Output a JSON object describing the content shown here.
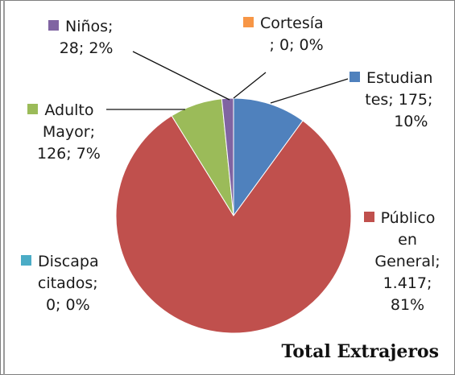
{
  "chart_data": {
    "type": "pie",
    "title": "Total Extrajeros",
    "slices": [
      {
        "name": "Estudiantes",
        "value": 175,
        "percent": "10%",
        "color": "#4f81bd",
        "label_lines": [
          "Estudian",
          "tes; 175;",
          "10%"
        ]
      },
      {
        "name": "Público en General",
        "value": 1417,
        "percent": "81%",
        "color": "#c0504d",
        "label_lines": [
          "Público",
          "en",
          "General;",
          "1.417;",
          "81%"
        ]
      },
      {
        "name": "Discapacitados",
        "value": 0,
        "percent": "0%",
        "color": "#4bacc6",
        "label_lines": [
          "Discapa",
          "citados;",
          "0; 0%"
        ]
      },
      {
        "name": "Adulto Mayor",
        "value": 126,
        "percent": "7%",
        "color": "#9bbb59",
        "label_lines": [
          "Adulto",
          "Mayor;",
          "126; 7%"
        ]
      },
      {
        "name": "Niños",
        "value": 28,
        "percent": "2%",
        "color": "#8064a2",
        "label_lines": [
          "Niños;",
          "28; 2%"
        ]
      },
      {
        "name": "Cortesía",
        "value": 0,
        "percent": "0%",
        "color": "#f79646",
        "label_lines": [
          "Cortesía",
          "; 0; 0%"
        ]
      }
    ]
  }
}
